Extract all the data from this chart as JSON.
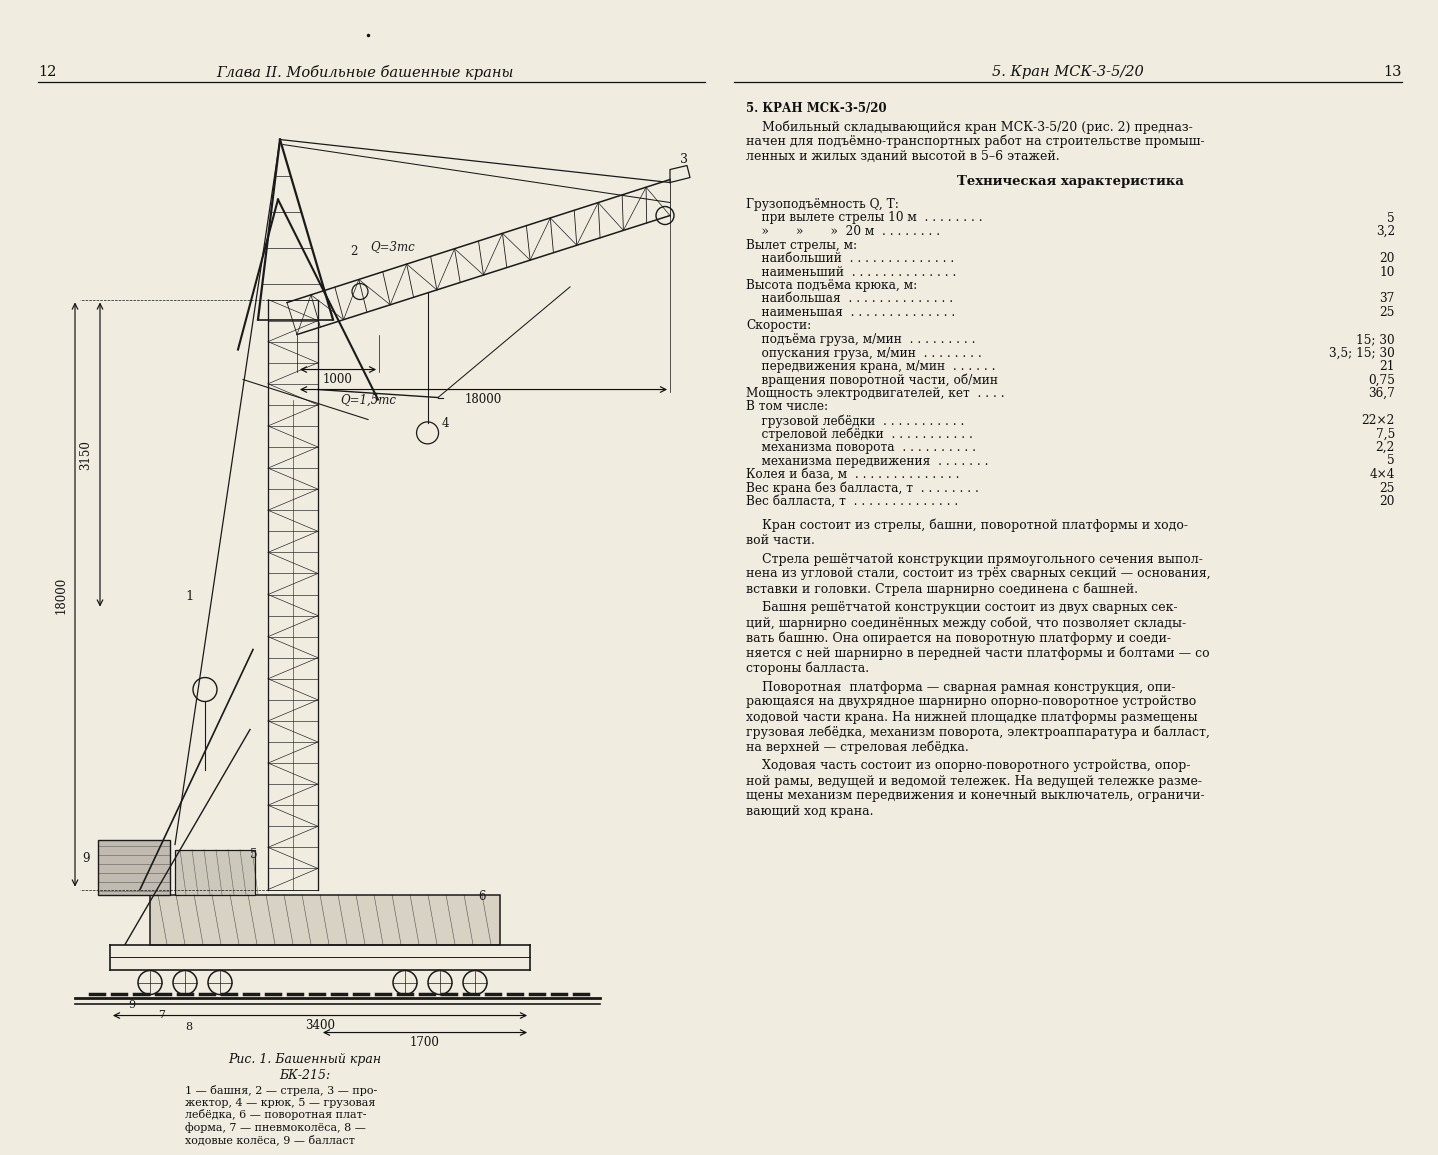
{
  "page_bg": "#f0ece0",
  "left_page_num": "12",
  "right_page_num": "13",
  "left_header": "Глава II. Мобильные башенные краны",
  "right_header": "5. Кран МСК-3-5/20",
  "right_section_title": "5. КРАН МСК-3-5/20",
  "right_intro_lines": [
    "    Мобильный складывающийся кран МСК-3-5/20 (рис. 2) предназ-",
    "начен для подъёмно-транспортных работ на строительстве промыш-",
    "ленных и жилых зданий высотой в 5–6 этажей."
  ],
  "right_tech_title": "Техническая характеристика",
  "tech_specs": [
    [
      "Грузоподъёмность Q, Т:",
      ""
    ],
    [
      "    при вылете стрелы 10 м  . . . . . . . .",
      "5"
    ],
    [
      "    »       »       »  20 м  . . . . . . . .",
      "3,2"
    ],
    [
      "Вылет стрелы, м:",
      ""
    ],
    [
      "    наибольший  . . . . . . . . . . . . . .",
      "20"
    ],
    [
      "    наименьший  . . . . . . . . . . . . . .",
      "10"
    ],
    [
      "Высота подъёма крюка, м:",
      ""
    ],
    [
      "    наибольшая  . . . . . . . . . . . . . .",
      "37"
    ],
    [
      "    наименьшая  . . . . . . . . . . . . . .",
      "25"
    ],
    [
      "Скорости:",
      ""
    ],
    [
      "    подъёма груза, м/мин  . . . . . . . . .",
      "15; 30"
    ],
    [
      "    опускания груза, м/мин  . . . . . . . .",
      "3,5; 15; 30"
    ],
    [
      "    передвижения крана, м/мин  . . . . . .",
      "21"
    ],
    [
      "    вращения поворотной части, об/мин",
      "0,75"
    ],
    [
      "Мощность электродвигателей, кет  . . . .",
      "36,7"
    ],
    [
      "В том числе:",
      ""
    ],
    [
      "    грузовой лебёдки  . . . . . . . . . . .",
      "22×2"
    ],
    [
      "    стреловой лебёдки  . . . . . . . . . . .",
      "7,5"
    ],
    [
      "    механизма поворота  . . . . . . . . . .",
      "2,2"
    ],
    [
      "    механизма передвижения  . . . . . . .",
      "5"
    ],
    [
      "Колея и база, м  . . . . . . . . . . . . . .",
      "4×4"
    ],
    [
      "Вес крана без балласта, т  . . . . . . . .",
      "25"
    ],
    [
      "Вес балласта, т  . . . . . . . . . . . . . .",
      "20"
    ]
  ],
  "right_paragraphs": [
    "    Кран состоит из стрелы, башни, поворотной платформы и ходо-\nвой части.",
    "    Стрела решётчатой конструкции прямоугольного сечения выпол-\nнена из угловой стали, состоит из трёх сварных секций — основания,\nвставки и головки. Стрела шарнирно соединена с башней.",
    "    Башня решётчатой конструкции состоит из двух сварных сек-\nций, шарнирно соединённых между собой, что позволяет склады-\nвать башню. Она опирается на поворотную платформу и соеди-\nняется с ней шарнирно в передней части платформы и болтами — со\nстороны балласта.",
    "    Поворотная  платформа — сварная рамная конструкция, опи-\nрающаяся на двухрядное шарнирно опорно-поворотное устройство\nходовой части крана. На нижней площадке платформы размещены\nгрузовая лебёдка, механизм поворота, электроаппаратура и балласт,\nна верхней — стреловая лебёдка.",
    "    Ходовая часть состоит из опорно-поворотного устройства, опор-\nной рамы, ведущей и ведомой тележек. На ведущей тележке разме-\nщены механизм передвижения и конечный выключатель, ограничи-\nвающий ход крана."
  ],
  "fig_caption_title": "Рис. 1. Башенный кран",
  "fig_caption_model": "БК-215:",
  "fig_caption_body": "1 — башня, 2 — стрела, 3 — про-\nжектор, 4 — крюк, 5 — грузовая\nлебёдка, 6 — поворотная плат-\nформа, 7 — пневмоколёса, 8 —\nходовые колёса, 9 — балласт"
}
